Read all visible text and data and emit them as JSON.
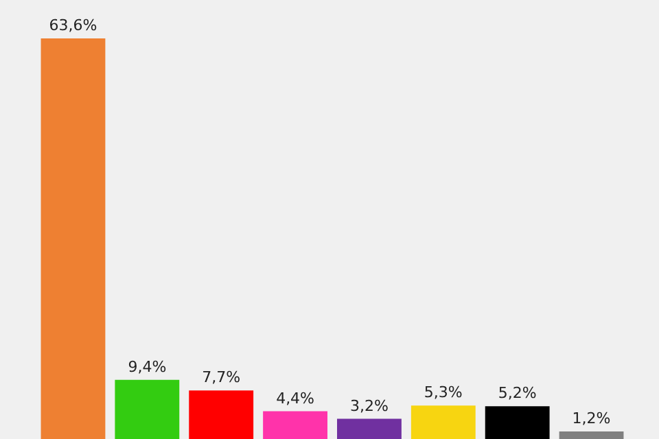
{
  "chart_data": {
    "type": "bar",
    "categories": [
      null,
      null,
      null,
      null,
      null,
      null,
      null,
      null
    ],
    "values": [
      63.6,
      9.4,
      7.7,
      4.4,
      3.2,
      5.3,
      5.2,
      1.2
    ],
    "colors": [
      "#ee8032",
      "#33cc11",
      "#ff0000",
      "#ff33aa",
      "#7030a0",
      "#f7d511",
      "#000000",
      "#808080"
    ],
    "value_labels": [
      "63,6%",
      "9,4%",
      "7,7%",
      "4,4%",
      "3,2%",
      "5,3%",
      "5,2%",
      "1,2%"
    ]
  }
}
